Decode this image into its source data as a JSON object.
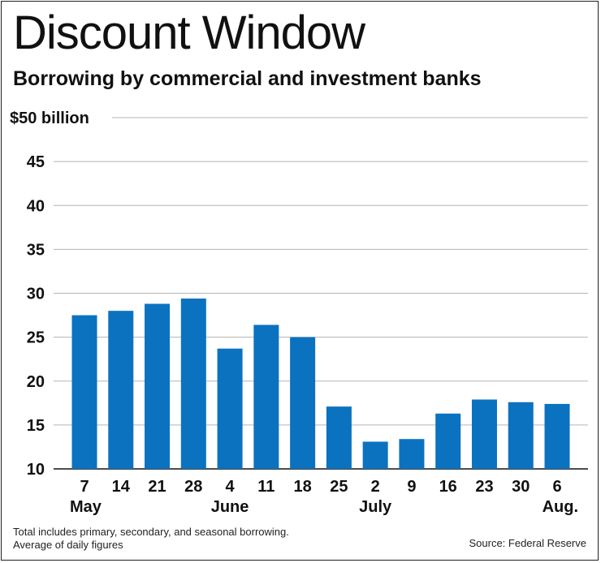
{
  "chart_data": {
    "type": "bar",
    "title": "Discount Window",
    "subtitle": "Borrowing by commercial and investment banks",
    "ylabel": "$50 billion",
    "ylim": [
      10,
      50
    ],
    "yticks": [
      "10",
      "15",
      "20",
      "25",
      "30",
      "35",
      "40",
      "45"
    ],
    "categories": [
      "7",
      "14",
      "21",
      "28",
      "4",
      "11",
      "18",
      "25",
      "2",
      "9",
      "16",
      "23",
      "30",
      "6"
    ],
    "months": [
      {
        "label": "May",
        "index": 0
      },
      {
        "label": "June",
        "index": 4
      },
      {
        "label": "July",
        "index": 8
      },
      {
        "label": "Aug.",
        "index": 13
      }
    ],
    "values": [
      27.5,
      28.0,
      28.8,
      29.4,
      23.7,
      26.4,
      25.0,
      17.1,
      13.1,
      13.4,
      16.3,
      17.9,
      17.6,
      17.4
    ],
    "bar_color": "#0b72c0",
    "grid_color": "#b5b5b5"
  },
  "footnote": {
    "line1": "Total includes primary, secondary, and seasonal borrowing.",
    "line2": "Average of daily figures"
  },
  "source": "Source: Federal Reserve"
}
